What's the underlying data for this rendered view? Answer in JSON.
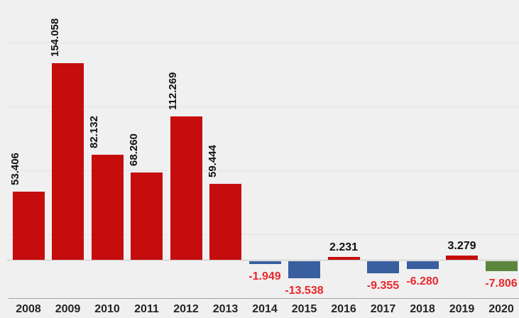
{
  "chart_data": {
    "type": "bar",
    "title": "",
    "xlabel": "",
    "ylabel": "",
    "legend": "none",
    "grid": "horizontal",
    "background": "#f0f0f1",
    "ylim": [
      -20,
      180
    ],
    "categories": [
      "2008",
      "2009",
      "2010",
      "2011",
      "2012",
      "2013",
      "2014",
      "2015",
      "2016",
      "2017",
      "2018",
      "2019",
      "2020"
    ],
    "values": [
      53.406,
      154.058,
      82.132,
      68.26,
      112.269,
      59.444,
      -1.949,
      -13.538,
      2.231,
      -9.355,
      -6.28,
      3.279,
      -7.806
    ],
    "value_labels": [
      "53.406",
      "154.058",
      "82.132",
      "68.260",
      "112.269",
      "59.444",
      "-1.949",
      "-13.538",
      "2.231",
      "-9.355",
      "-6.280",
      "3.279",
      "-7.806"
    ],
    "bar_colors": [
      "red",
      "red",
      "red",
      "red",
      "red",
      "red",
      "blue",
      "blue",
      "red",
      "blue",
      "blue",
      "red",
      "green"
    ],
    "rotated_value_labels": [
      true,
      true,
      true,
      true,
      true,
      true,
      false,
      false,
      false,
      false,
      false,
      false,
      false
    ],
    "palette": {
      "red": "#c60d0d",
      "blue": "#3a5f9e",
      "green": "#5a863e"
    },
    "label_color_positive": "#111111",
    "label_color_negative": "#e8282a",
    "axis_label_color": "#242424"
  }
}
